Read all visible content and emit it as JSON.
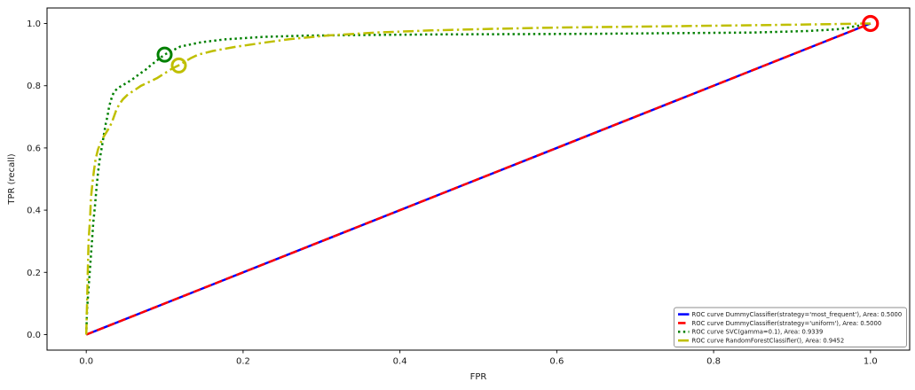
{
  "figure": {
    "background": "#ffffff"
  },
  "chart_data": {
    "type": "line",
    "title": "",
    "xlabel": "FPR",
    "ylabel": "TPR (recall)",
    "xlim": [
      -0.05,
      1.05
    ],
    "ylim": [
      -0.05,
      1.05
    ],
    "x_ticks": [
      0.0,
      0.2,
      0.4,
      0.6,
      0.8,
      1.0
    ],
    "y_ticks": [
      0.0,
      0.2,
      0.4,
      0.6,
      0.8,
      1.0
    ],
    "x_tick_labels": [
      "0.0",
      "0.2",
      "0.4",
      "0.6",
      "0.8",
      "1.0"
    ],
    "y_tick_labels": [
      "0.0",
      "0.2",
      "0.4",
      "0.6",
      "0.8",
      "1.0"
    ],
    "grid": false,
    "legend_position": "lower right",
    "series": [
      {
        "name": "ROC curve DummyClassifier(strategy='most_frequent'), Area: 0.5000",
        "color": "#0000ff",
        "dash": "solid",
        "width": 2.5,
        "points": [
          [
            0,
            0
          ],
          [
            1,
            1
          ]
        ]
      },
      {
        "name": "ROC curve DummyClassifier(strategy='uniform'), Area: 0.5000",
        "color": "#ff0000",
        "dash": "dashed",
        "width": 2.5,
        "points": [
          [
            0,
            0
          ],
          [
            1,
            1
          ]
        ]
      },
      {
        "name": "ROC curve SVC(gamma=0.1), Area: 0.9339",
        "color": "#008000",
        "dash": "dotted",
        "width": 2.5,
        "points": [
          [
            0,
            0
          ],
          [
            0.001,
            0.08
          ],
          [
            0.003,
            0.15
          ],
          [
            0.005,
            0.22
          ],
          [
            0.007,
            0.29
          ],
          [
            0.009,
            0.36
          ],
          [
            0.011,
            0.41
          ],
          [
            0.013,
            0.47
          ],
          [
            0.015,
            0.52
          ],
          [
            0.017,
            0.56
          ],
          [
            0.019,
            0.59
          ],
          [
            0.021,
            0.62
          ],
          [
            0.023,
            0.65
          ],
          [
            0.025,
            0.68
          ],
          [
            0.027,
            0.7
          ],
          [
            0.029,
            0.73
          ],
          [
            0.031,
            0.75
          ],
          [
            0.033,
            0.765
          ],
          [
            0.035,
            0.778
          ],
          [
            0.038,
            0.787
          ],
          [
            0.042,
            0.795
          ],
          [
            0.046,
            0.801
          ],
          [
            0.05,
            0.807
          ],
          [
            0.054,
            0.813
          ],
          [
            0.059,
            0.821
          ],
          [
            0.063,
            0.829
          ],
          [
            0.069,
            0.84
          ],
          [
            0.075,
            0.85
          ],
          [
            0.081,
            0.863
          ],
          [
            0.088,
            0.877
          ],
          [
            0.094,
            0.889
          ],
          [
            0.1,
            0.9
          ],
          [
            0.12,
            0.926
          ],
          [
            0.147,
            0.94
          ],
          [
            0.177,
            0.949
          ],
          [
            0.226,
            0.957
          ],
          [
            0.28,
            0.961
          ],
          [
            0.35,
            0.963
          ],
          [
            0.45,
            0.965
          ],
          [
            0.55,
            0.966
          ],
          [
            0.65,
            0.967
          ],
          [
            0.75,
            0.969
          ],
          [
            0.85,
            0.971
          ],
          [
            0.92,
            0.976
          ],
          [
            0.96,
            0.982
          ],
          [
            1,
            1
          ]
        ]
      },
      {
        "name": "ROC curve RandomForestClassifier(), Area: 0.9452",
        "color": "#bfbf00",
        "dash": "dashdot",
        "width": 2.5,
        "points": [
          [
            0,
            0
          ],
          [
            0.001,
            0.1
          ],
          [
            0.002,
            0.2
          ],
          [
            0.003,
            0.3
          ],
          [
            0.005,
            0.38
          ],
          [
            0.006,
            0.44
          ],
          [
            0.008,
            0.49
          ],
          [
            0.01,
            0.53
          ],
          [
            0.012,
            0.565
          ],
          [
            0.015,
            0.595
          ],
          [
            0.018,
            0.615
          ],
          [
            0.022,
            0.635
          ],
          [
            0.026,
            0.652
          ],
          [
            0.03,
            0.668
          ],
          [
            0.033,
            0.684
          ],
          [
            0.038,
            0.72
          ],
          [
            0.042,
            0.74
          ],
          [
            0.047,
            0.757
          ],
          [
            0.053,
            0.772
          ],
          [
            0.06,
            0.783
          ],
          [
            0.07,
            0.8
          ],
          [
            0.08,
            0.812
          ],
          [
            0.09,
            0.824
          ],
          [
            0.1,
            0.84
          ],
          [
            0.11,
            0.856
          ],
          [
            0.118,
            0.866
          ],
          [
            0.133,
            0.888
          ],
          [
            0.143,
            0.9
          ],
          [
            0.162,
            0.912
          ],
          [
            0.19,
            0.925
          ],
          [
            0.222,
            0.937
          ],
          [
            0.26,
            0.95
          ],
          [
            0.31,
            0.962
          ],
          [
            0.37,
            0.971
          ],
          [
            0.44,
            0.978
          ],
          [
            0.52,
            0.983
          ],
          [
            0.6,
            0.987
          ],
          [
            0.7,
            0.99
          ],
          [
            0.8,
            0.993
          ],
          [
            0.9,
            0.996
          ],
          [
            1,
            1
          ]
        ]
      }
    ],
    "markers": [
      {
        "name": "svc-operating-point",
        "color": "#008000",
        "x": 0.1,
        "y": 0.9,
        "radius": 7.5,
        "stroke_width": 3
      },
      {
        "name": "random-forest-operating-point",
        "color": "#bfbf00",
        "x": 0.118,
        "y": 0.865,
        "radius": 7.5,
        "stroke_width": 3
      },
      {
        "name": "dummy-operating-point",
        "color": "#ff0000",
        "x": 1.0,
        "y": 1.0,
        "radius": 8,
        "stroke_width": 3.2
      }
    ],
    "legend": {
      "entries": [
        "ROC curve DummyClassifier(strategy='most_frequent'), Area: 0.5000",
        "ROC curve DummyClassifier(strategy='uniform'), Area: 0.5000",
        "ROC curve SVC(gamma=0.1), Area: 0.9339",
        "ROC curve RandomForestClassifier(), Area: 0.9452"
      ]
    }
  }
}
